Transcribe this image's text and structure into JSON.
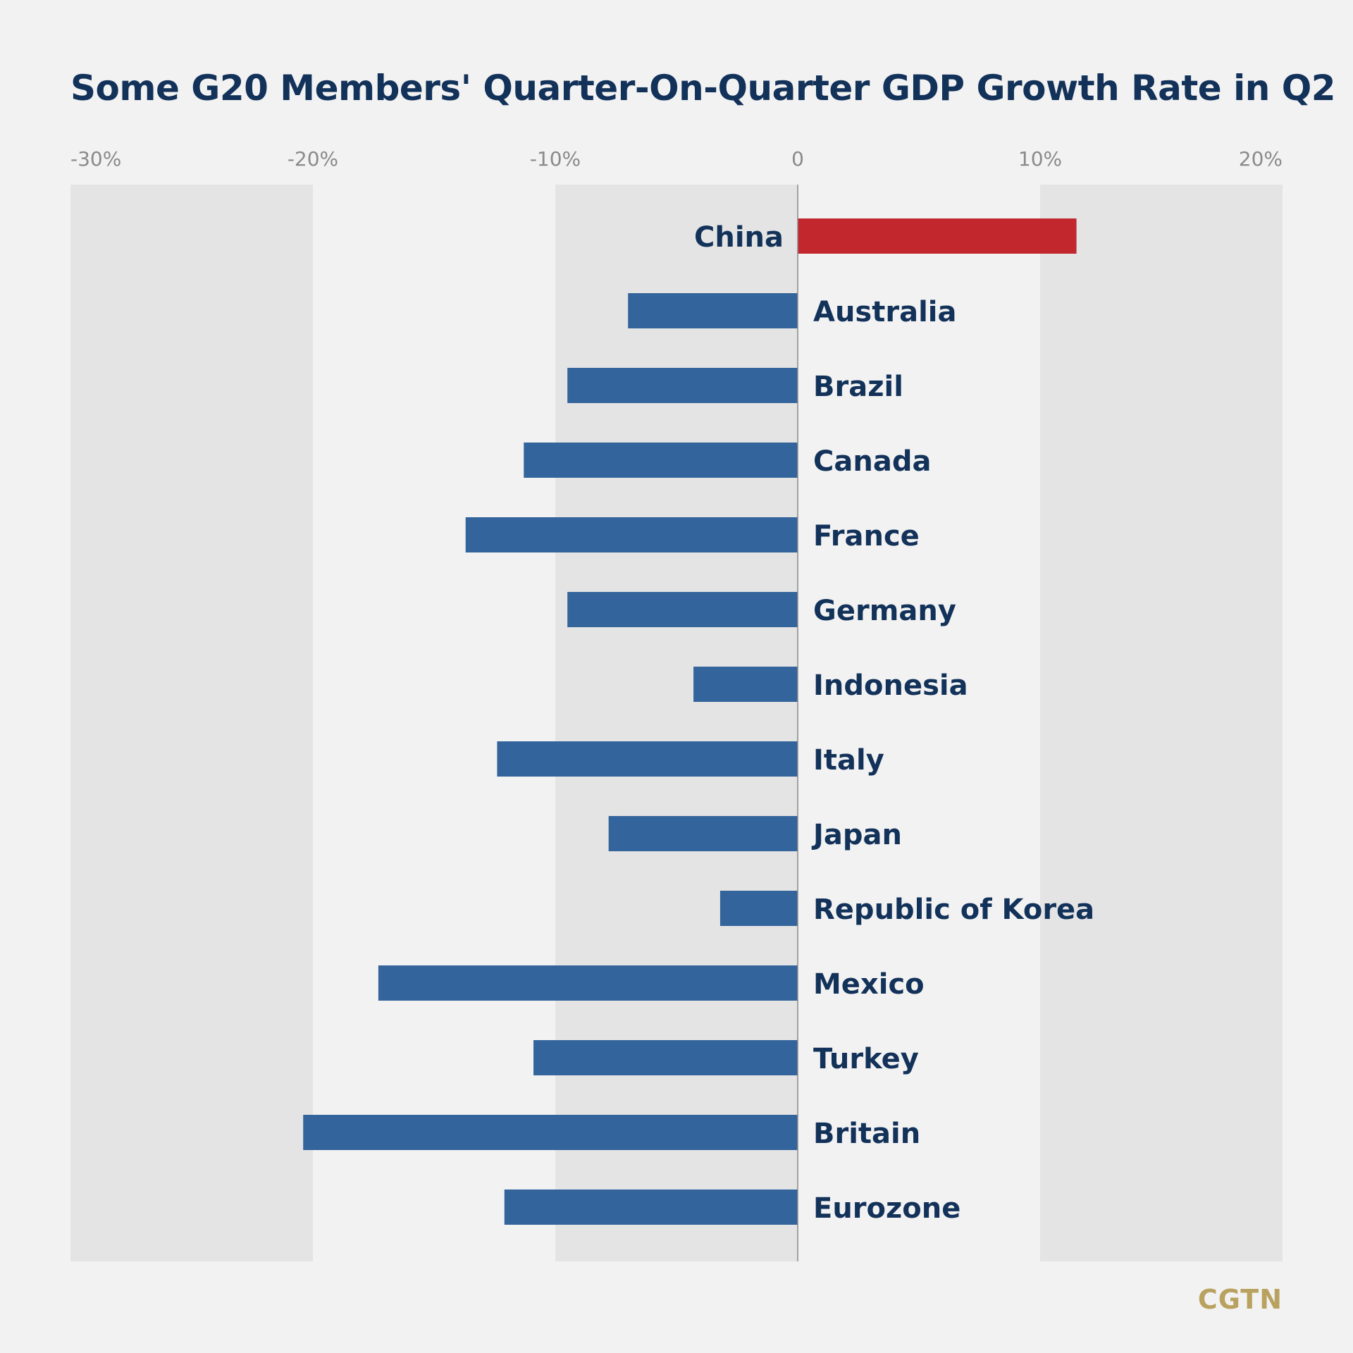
{
  "colors": {
    "background": "#f2f2f2",
    "band": "#e4e4e4",
    "title": "#13325a",
    "negative_bar": "#33649b",
    "highlight_bar": "#c1272d",
    "tick_label": "#8a8a8a",
    "axis_line": "#8a8a8a",
    "country_label": "#13325a",
    "logo": "#b9a15f"
  },
  "logo": "CGTN",
  "chart_data": {
    "type": "bar",
    "orientation": "horizontal",
    "title": "Some G20 Members' Quarter-On-Quarter GDP Growth Rate in Q2",
    "xlim": [
      -30,
      20
    ],
    "xticks": [
      -30,
      -20,
      -10,
      0,
      10,
      20
    ],
    "xtick_labels": [
      "-30%",
      "-20%",
      "-10%",
      "0",
      "10%",
      "20%"
    ],
    "tick_position": "top",
    "alternating_bands": true,
    "highlight_category": "China",
    "categories": [
      "China",
      "Australia",
      "Brazil",
      "Canada",
      "France",
      "Germany",
      "Indonesia",
      "Italy",
      "Japan",
      "Republic of Korea",
      "Mexico",
      "Turkey",
      "Britain",
      "Eurozone"
    ],
    "values": [
      11.5,
      -7.0,
      -9.5,
      -11.3,
      -13.7,
      -9.5,
      -4.3,
      -12.4,
      -7.8,
      -3.2,
      -17.3,
      -10.9,
      -20.4,
      -12.1
    ]
  }
}
